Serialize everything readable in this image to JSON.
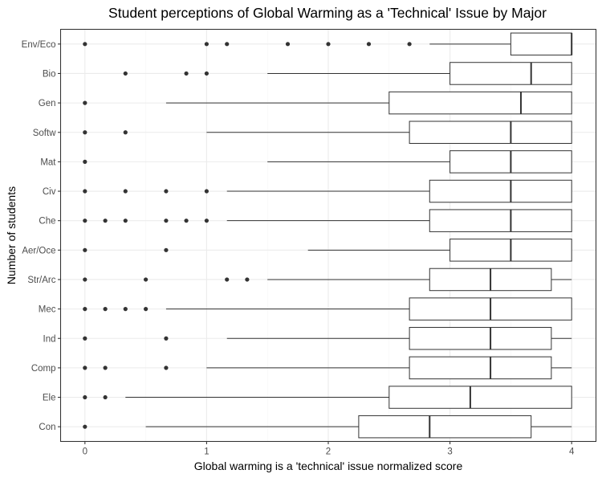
{
  "chart_data": {
    "type": "boxplot",
    "orientation": "horizontal",
    "title": "Student perceptions of Global Warming as a 'Technical' Issue by Major",
    "xlabel": "Global warming is a 'technical' issue normalized score",
    "ylabel": "Number of students",
    "xlim": [
      -0.2,
      4.2
    ],
    "x_ticks": [
      0,
      1,
      2,
      3,
      4
    ],
    "x_tick_labels": [
      "0",
      "1",
      "2",
      "3",
      "4"
    ],
    "grid": true,
    "categories": [
      "Con",
      "Ele",
      "Comp",
      "Ind",
      "Mec",
      "Str/Arc",
      "Aer/Oce",
      "Che",
      "Civ",
      "Mat",
      "Softw",
      "Gen",
      "Bio",
      "Env/Eco"
    ],
    "boxes": [
      {
        "category": "Con",
        "whisker_low": 0.5,
        "q1": 2.25,
        "median": 2.833,
        "q3": 3.667,
        "whisker_high": 4.0,
        "outliers": [
          0
        ]
      },
      {
        "category": "Ele",
        "whisker_low": 0.333,
        "q1": 2.5,
        "median": 3.167,
        "q3": 4.0,
        "whisker_high": 4.0,
        "outliers": [
          0,
          0.167
        ]
      },
      {
        "category": "Comp",
        "whisker_low": 1.0,
        "q1": 2.667,
        "median": 3.333,
        "q3": 3.833,
        "whisker_high": 4.0,
        "outliers": [
          0,
          0.167,
          0.667
        ]
      },
      {
        "category": "Ind",
        "whisker_low": 1.167,
        "q1": 2.667,
        "median": 3.333,
        "q3": 3.833,
        "whisker_high": 4.0,
        "outliers": [
          0,
          0.667
        ]
      },
      {
        "category": "Mec",
        "whisker_low": 0.667,
        "q1": 2.667,
        "median": 3.333,
        "q3": 4.0,
        "whisker_high": 4.0,
        "outliers": [
          0,
          0.167,
          0.333,
          0.5
        ]
      },
      {
        "category": "Str/Arc",
        "whisker_low": 1.5,
        "q1": 2.833,
        "median": 3.333,
        "q3": 3.833,
        "whisker_high": 4.0,
        "outliers": [
          0,
          0.5,
          1.167,
          1.333
        ]
      },
      {
        "category": "Aer/Oce",
        "whisker_low": 1.833,
        "q1": 3.0,
        "median": 3.5,
        "q3": 4.0,
        "whisker_high": 4.0,
        "outliers": [
          0,
          0.667
        ]
      },
      {
        "category": "Che",
        "whisker_low": 1.167,
        "q1": 2.833,
        "median": 3.5,
        "q3": 4.0,
        "whisker_high": 4.0,
        "outliers": [
          0,
          0.167,
          0.333,
          0.667,
          0.833,
          1.0
        ]
      },
      {
        "category": "Civ",
        "whisker_low": 1.167,
        "q1": 2.833,
        "median": 3.5,
        "q3": 4.0,
        "whisker_high": 4.0,
        "outliers": [
          0,
          0.333,
          0.667,
          1.0
        ]
      },
      {
        "category": "Mat",
        "whisker_low": 1.5,
        "q1": 3.0,
        "median": 3.5,
        "q3": 4.0,
        "whisker_high": 4.0,
        "outliers": [
          0
        ]
      },
      {
        "category": "Softw",
        "whisker_low": 1.0,
        "q1": 2.667,
        "median": 3.5,
        "q3": 4.0,
        "whisker_high": 4.0,
        "outliers": [
          0,
          0.333
        ]
      },
      {
        "category": "Gen",
        "whisker_low": 0.667,
        "q1": 2.5,
        "median": 3.583,
        "q3": 4.0,
        "whisker_high": 4.0,
        "outliers": [
          0
        ]
      },
      {
        "category": "Bio",
        "whisker_low": 1.5,
        "q1": 3.0,
        "median": 3.667,
        "q3": 4.0,
        "whisker_high": 4.0,
        "outliers": [
          0.333,
          0.833,
          1.0
        ]
      },
      {
        "category": "Env/Eco",
        "whisker_low": 2.833,
        "q1": 3.5,
        "median": 4.0,
        "q3": 4.0,
        "whisker_high": 4.0,
        "outliers": [
          0,
          1.0,
          1.167,
          1.667,
          2.0,
          2.333,
          2.667
        ]
      }
    ]
  }
}
